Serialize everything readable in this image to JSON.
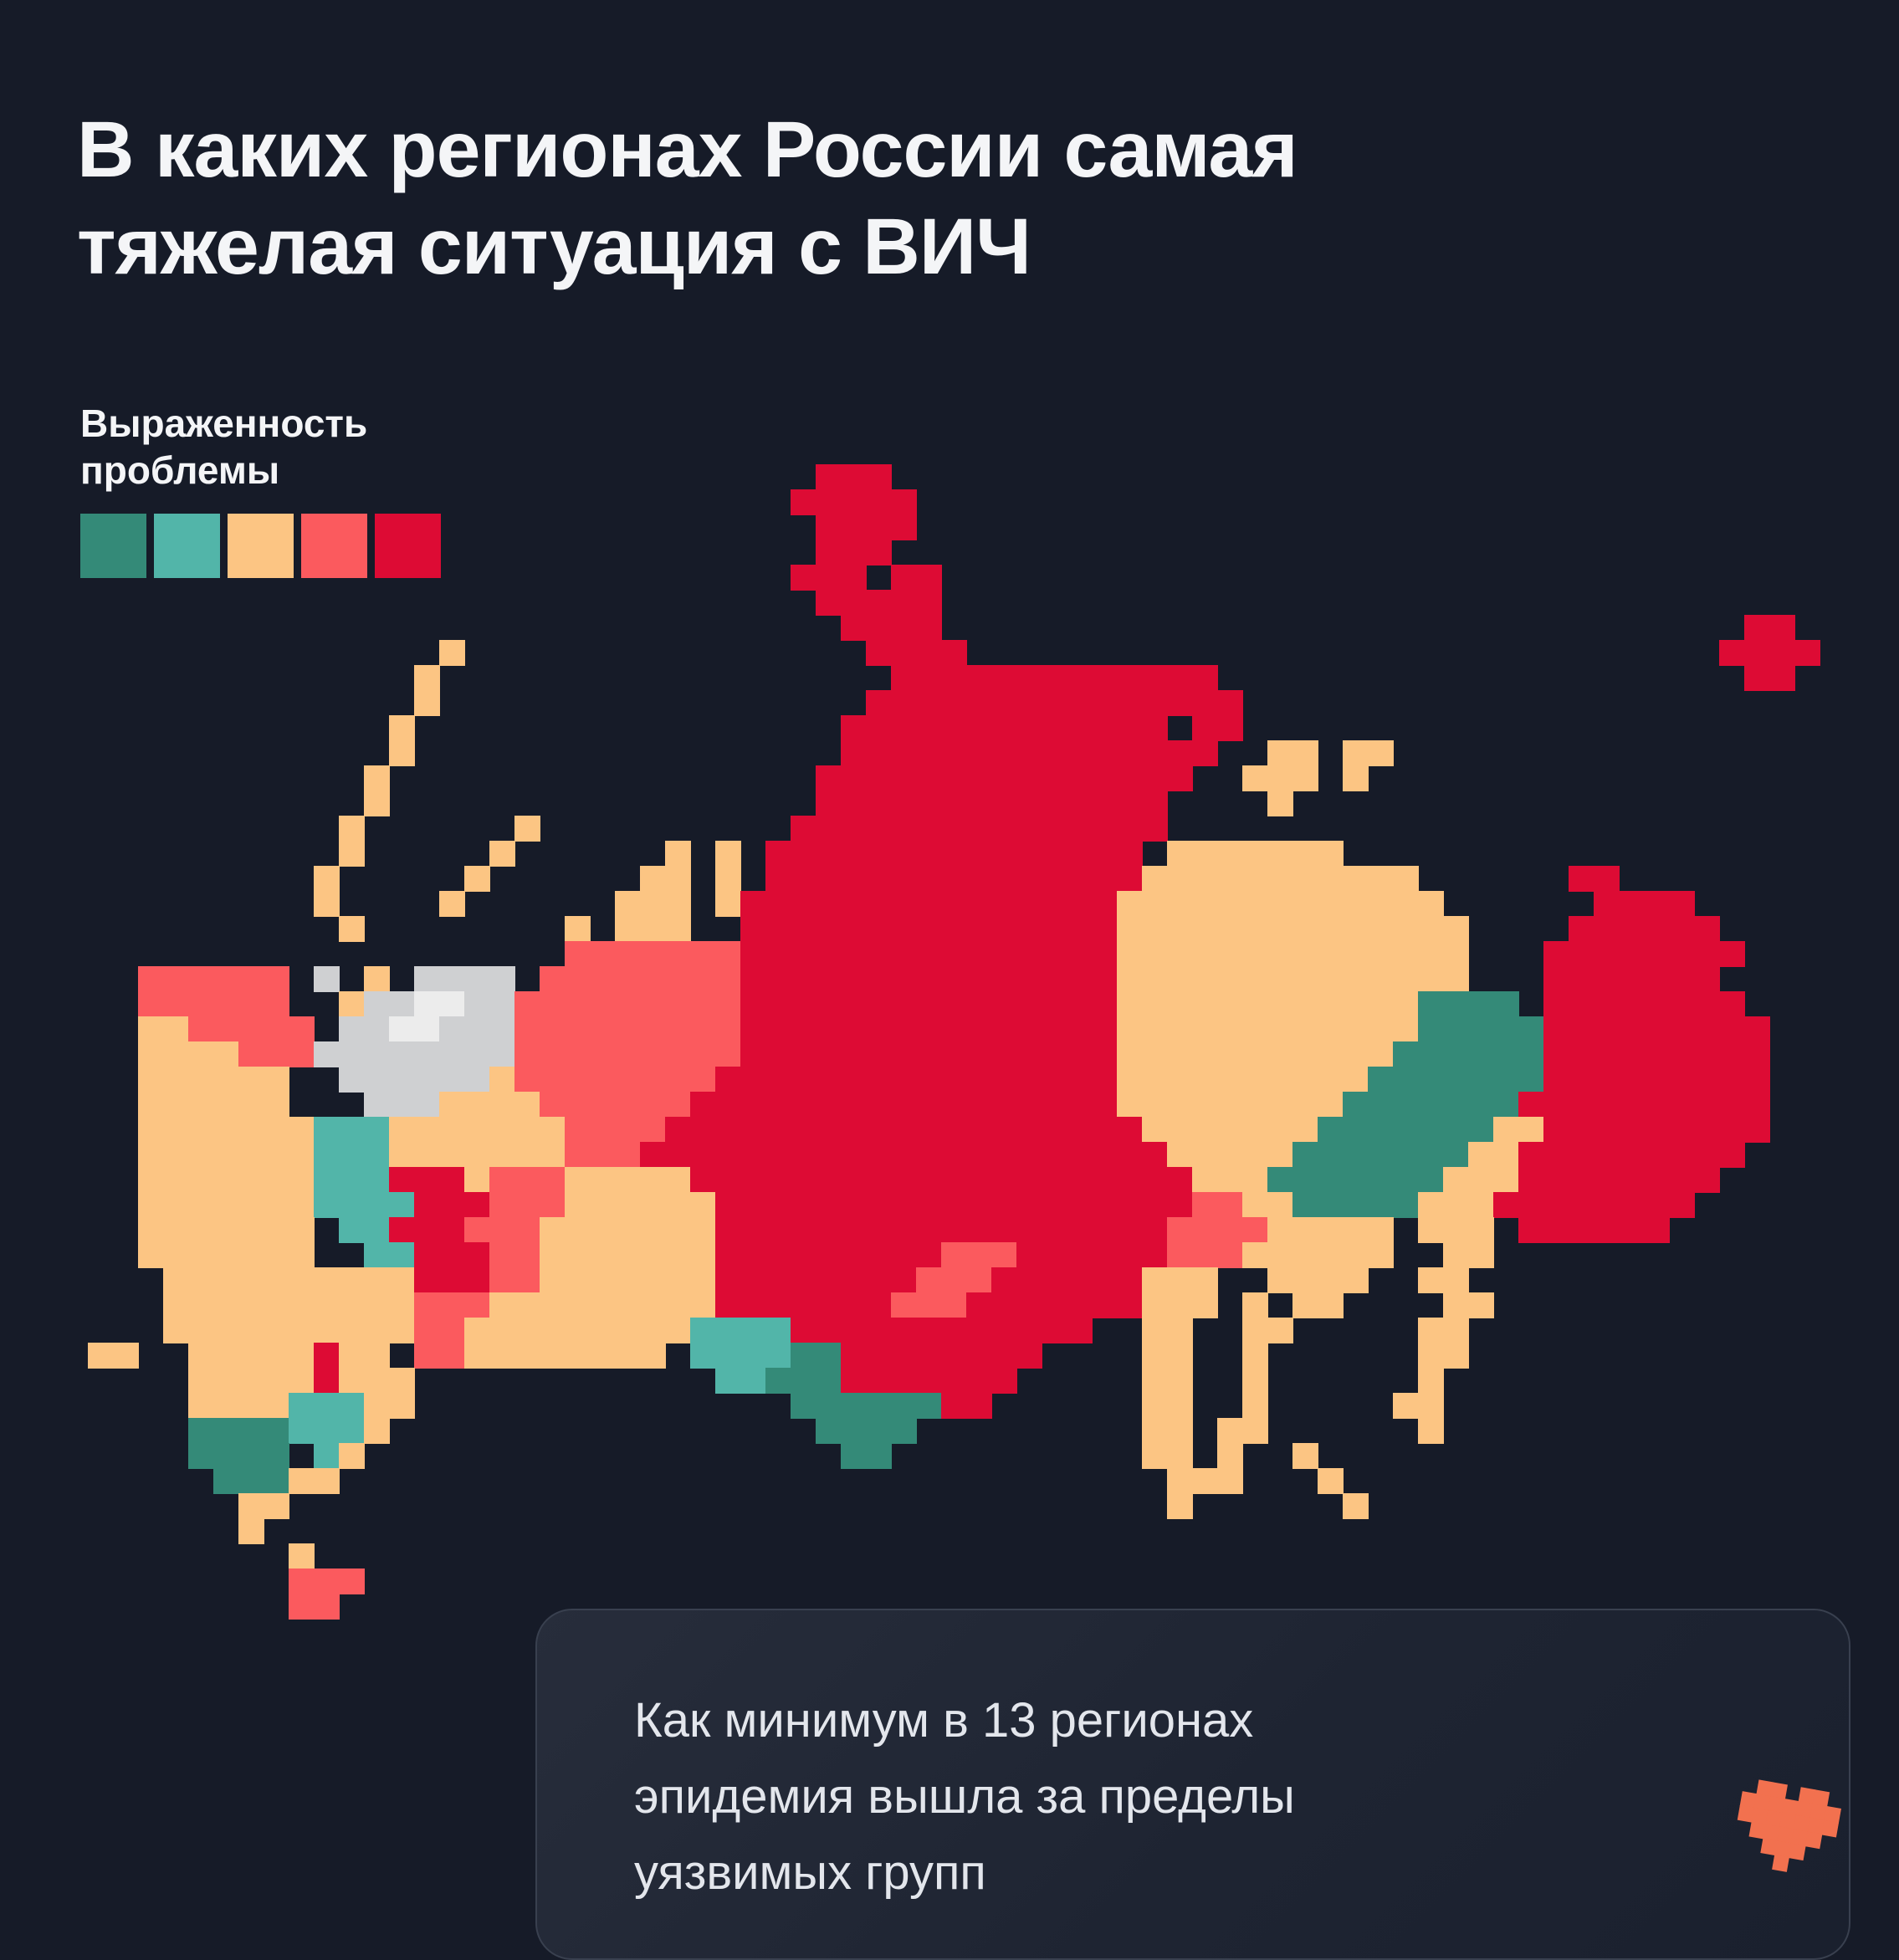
{
  "page": {
    "bg": "#161b28"
  },
  "title": {
    "line1": "В каких регионах России самая",
    "line2": "тяжелая ситуация с ВИЧ"
  },
  "legend": {
    "label_line1": "Выраженность",
    "label_line2": "проблемы",
    "swatches": [
      "#348a78",
      "#52b5a9",
      "#fcc583",
      "#fb5a5e",
      "#dd0b34"
    ]
  },
  "card": {
    "line1": "Как минимум в 13 регионах",
    "line2": "эпидемия вышла за пределы",
    "line3": "уязвимых групп"
  },
  "logo": {
    "color": "#f2714f",
    "pattern": [
      ".XX.XX.",
      "XXXXXXX",
      "XXXXXXX",
      ".XXXXX.",
      "..XXX..",
      "...X..."
    ]
  },
  "map": {
    "cell_size": 30,
    "palette": {
      "g": "#348a78",
      "t": "#52b5a9",
      "o": "#fcc583",
      "p": "#fb5a5e",
      "r": "#dd0b34",
      "w": "#cfd0d2",
      "W": "#ececec"
    },
    "rows": [
      [
        [
          29,
          3,
          "r"
        ]
      ],
      [
        [
          28,
          5,
          "r"
        ]
      ],
      [
        [
          29,
          4,
          "r"
        ]
      ],
      [
        [
          29,
          3,
          "r"
        ]
      ],
      [
        [
          28,
          3,
          "r"
        ],
        [
          32,
          2,
          "r"
        ]
      ],
      [
        [
          29,
          5,
          "r"
        ]
      ],
      [
        [
          30,
          4,
          "r"
        ],
        [
          66,
          2,
          "r"
        ]
      ],
      [
        [
          14,
          1,
          "o"
        ],
        [
          31,
          4,
          "r"
        ],
        [
          65,
          4,
          "r"
        ]
      ],
      [
        [
          13,
          1,
          "o"
        ],
        [
          32,
          13,
          "r"
        ],
        [
          66,
          2,
          "r"
        ]
      ],
      [
        [
          13,
          1,
          "o"
        ],
        [
          31,
          15,
          "r"
        ]
      ],
      [
        [
          12,
          1,
          "o"
        ],
        [
          30,
          13,
          "r"
        ],
        [
          44,
          2,
          "r"
        ]
      ],
      [
        [
          12,
          1,
          "o"
        ],
        [
          30,
          15,
          "r"
        ],
        [
          47,
          2,
          "o"
        ],
        [
          50,
          2,
          "o"
        ]
      ],
      [
        [
          11,
          1,
          "o"
        ],
        [
          29,
          15,
          "r"
        ],
        [
          46,
          3,
          "o"
        ],
        [
          50,
          1,
          "o"
        ]
      ],
      [
        [
          11,
          1,
          "o"
        ],
        [
          29,
          14,
          "r"
        ],
        [
          47,
          1,
          "o"
        ]
      ],
      [
        [
          10,
          1,
          "o"
        ],
        [
          17,
          1,
          "o"
        ],
        [
          28,
          15,
          "r"
        ]
      ],
      [
        [
          10,
          1,
          "o"
        ],
        [
          16,
          1,
          "o"
        ],
        [
          23,
          1,
          "o"
        ],
        [
          25,
          1,
          "o"
        ],
        [
          27,
          15,
          "r"
        ],
        [
          43,
          7,
          "o"
        ]
      ],
      [
        [
          9,
          1,
          "o"
        ],
        [
          15,
          1,
          "o"
        ],
        [
          22,
          2,
          "o"
        ],
        [
          25,
          1,
          "o"
        ],
        [
          27,
          15,
          "r"
        ],
        [
          42,
          11,
          "o"
        ],
        [
          59,
          2,
          "r"
        ]
      ],
      [
        [
          9,
          1,
          "o"
        ],
        [
          14,
          1,
          "o"
        ],
        [
          21,
          3,
          "o"
        ],
        [
          25,
          1,
          "o"
        ],
        [
          26,
          15,
          "r"
        ],
        [
          41,
          13,
          "o"
        ],
        [
          60,
          4,
          "r"
        ]
      ],
      [
        [
          10,
          1,
          "o"
        ],
        [
          19,
          1,
          "o"
        ],
        [
          21,
          3,
          "o"
        ],
        [
          26,
          15,
          "r"
        ],
        [
          41,
          14,
          "o"
        ],
        [
          59,
          6,
          "r"
        ]
      ],
      [
        [
          19,
          7,
          "p"
        ],
        [
          26,
          15,
          "r"
        ],
        [
          41,
          14,
          "o"
        ],
        [
          58,
          8,
          "r"
        ]
      ],
      [
        [
          2,
          6,
          "p"
        ],
        [
          9,
          1,
          "w"
        ],
        [
          11,
          1,
          "o"
        ],
        [
          13,
          4,
          "w"
        ],
        [
          18,
          8,
          "p"
        ],
        [
          26,
          15,
          "r"
        ],
        [
          41,
          14,
          "o"
        ],
        [
          58,
          7,
          "r"
        ]
      ],
      [
        [
          2,
          6,
          "p"
        ],
        [
          10,
          1,
          "o"
        ],
        [
          11,
          2,
          "w"
        ],
        [
          13,
          2,
          "W"
        ],
        [
          15,
          2,
          "w"
        ],
        [
          17,
          9,
          "p"
        ],
        [
          26,
          15,
          "r"
        ],
        [
          41,
          12,
          "o"
        ],
        [
          53,
          4,
          "g"
        ],
        [
          58,
          8,
          "r"
        ]
      ],
      [
        [
          2,
          2,
          "o"
        ],
        [
          4,
          5,
          "p"
        ],
        [
          10,
          2,
          "w"
        ],
        [
          12,
          2,
          "W"
        ],
        [
          14,
          3,
          "w"
        ],
        [
          17,
          9,
          "p"
        ],
        [
          26,
          15,
          "r"
        ],
        [
          41,
          12,
          "o"
        ],
        [
          53,
          5,
          "g"
        ],
        [
          58,
          9,
          "r"
        ]
      ],
      [
        [
          2,
          4,
          "o"
        ],
        [
          6,
          3,
          "p"
        ],
        [
          9,
          8,
          "w"
        ],
        [
          17,
          9,
          "p"
        ],
        [
          26,
          15,
          "r"
        ],
        [
          41,
          11,
          "o"
        ],
        [
          52,
          6,
          "g"
        ],
        [
          58,
          9,
          "r"
        ]
      ],
      [
        [
          2,
          6,
          "o"
        ],
        [
          10,
          6,
          "w"
        ],
        [
          16,
          1,
          "o"
        ],
        [
          17,
          8,
          "p"
        ],
        [
          25,
          16,
          "r"
        ],
        [
          41,
          10,
          "o"
        ],
        [
          51,
          7,
          "g"
        ],
        [
          58,
          9,
          "r"
        ]
      ],
      [
        [
          2,
          6,
          "o"
        ],
        [
          11,
          3,
          "w"
        ],
        [
          14,
          4,
          "o"
        ],
        [
          18,
          6,
          "p"
        ],
        [
          24,
          17,
          "r"
        ],
        [
          41,
          9,
          "o"
        ],
        [
          50,
          7,
          "g"
        ],
        [
          57,
          10,
          "r"
        ]
      ],
      [
        [
          2,
          7,
          "o"
        ],
        [
          9,
          3,
          "t"
        ],
        [
          12,
          7,
          "o"
        ],
        [
          19,
          4,
          "p"
        ],
        [
          23,
          19,
          "r"
        ],
        [
          42,
          7,
          "o"
        ],
        [
          49,
          7,
          "g"
        ],
        [
          56,
          2,
          "o"
        ],
        [
          58,
          9,
          "r"
        ]
      ],
      [
        [
          2,
          7,
          "o"
        ],
        [
          9,
          3,
          "t"
        ],
        [
          12,
          7,
          "o"
        ],
        [
          19,
          3,
          "p"
        ],
        [
          22,
          21,
          "r"
        ],
        [
          43,
          5,
          "o"
        ],
        [
          48,
          7,
          "g"
        ],
        [
          55,
          2,
          "o"
        ],
        [
          57,
          9,
          "r"
        ]
      ],
      [
        [
          2,
          7,
          "o"
        ],
        [
          9,
          3,
          "t"
        ],
        [
          12,
          3,
          "r"
        ],
        [
          15,
          1,
          "o"
        ],
        [
          16,
          3,
          "p"
        ],
        [
          19,
          5,
          "o"
        ],
        [
          24,
          20,
          "r"
        ],
        [
          44,
          3,
          "o"
        ],
        [
          47,
          7,
          "g"
        ],
        [
          54,
          3,
          "o"
        ],
        [
          57,
          8,
          "r"
        ]
      ],
      [
        [
          2,
          7,
          "o"
        ],
        [
          9,
          4,
          "t"
        ],
        [
          13,
          3,
          "r"
        ],
        [
          16,
          3,
          "p"
        ],
        [
          19,
          6,
          "o"
        ],
        [
          25,
          19,
          "r"
        ],
        [
          44,
          2,
          "p"
        ],
        [
          46,
          2,
          "o"
        ],
        [
          48,
          5,
          "g"
        ],
        [
          53,
          3,
          "o"
        ],
        [
          56,
          8,
          "r"
        ]
      ],
      [
        [
          2,
          7,
          "o"
        ],
        [
          10,
          2,
          "t"
        ],
        [
          12,
          3,
          "r"
        ],
        [
          15,
          3,
          "p"
        ],
        [
          18,
          7,
          "o"
        ],
        [
          25,
          18,
          "r"
        ],
        [
          43,
          4,
          "p"
        ],
        [
          47,
          5,
          "o"
        ],
        [
          53,
          3,
          "o"
        ],
        [
          57,
          6,
          "r"
        ]
      ],
      [
        [
          2,
          7,
          "o"
        ],
        [
          11,
          2,
          "t"
        ],
        [
          13,
          3,
          "r"
        ],
        [
          16,
          2,
          "p"
        ],
        [
          18,
          7,
          "o"
        ],
        [
          25,
          9,
          "r"
        ],
        [
          34,
          3,
          "p"
        ],
        [
          37,
          6,
          "r"
        ],
        [
          43,
          3,
          "p"
        ],
        [
          46,
          6,
          "o"
        ],
        [
          54,
          2,
          "o"
        ]
      ],
      [
        [
          3,
          10,
          "o"
        ],
        [
          13,
          3,
          "r"
        ],
        [
          16,
          2,
          "p"
        ],
        [
          18,
          7,
          "o"
        ],
        [
          25,
          8,
          "r"
        ],
        [
          33,
          3,
          "p"
        ],
        [
          36,
          6,
          "r"
        ],
        [
          42,
          3,
          "o"
        ],
        [
          47,
          4,
          "o"
        ],
        [
          53,
          2,
          "o"
        ]
      ],
      [
        [
          3,
          10,
          "o"
        ],
        [
          13,
          3,
          "p"
        ],
        [
          16,
          9,
          "o"
        ],
        [
          25,
          7,
          "r"
        ],
        [
          32,
          3,
          "p"
        ],
        [
          35,
          7,
          "r"
        ],
        [
          42,
          3,
          "o"
        ],
        [
          46,
          1,
          "o"
        ],
        [
          48,
          2,
          "o"
        ],
        [
          54,
          2,
          "o"
        ]
      ],
      [
        [
          3,
          10,
          "o"
        ],
        [
          13,
          2,
          "p"
        ],
        [
          15,
          9,
          "o"
        ],
        [
          24,
          4,
          "t"
        ],
        [
          28,
          12,
          "r"
        ],
        [
          42,
          2,
          "o"
        ],
        [
          46,
          2,
          "o"
        ],
        [
          53,
          2,
          "o"
        ]
      ],
      [
        [
          0,
          2,
          "o"
        ],
        [
          4,
          5,
          "o"
        ],
        [
          9,
          1,
          "r"
        ],
        [
          10,
          2,
          "o"
        ],
        [
          13,
          2,
          "p"
        ],
        [
          15,
          8,
          "o"
        ],
        [
          24,
          4,
          "t"
        ],
        [
          28,
          2,
          "g"
        ],
        [
          30,
          8,
          "r"
        ],
        [
          42,
          2,
          "o"
        ],
        [
          46,
          1,
          "o"
        ],
        [
          53,
          2,
          "o"
        ]
      ],
      [
        [
          4,
          5,
          "o"
        ],
        [
          9,
          1,
          "r"
        ],
        [
          10,
          3,
          "o"
        ],
        [
          25,
          2,
          "t"
        ],
        [
          27,
          3,
          "g"
        ],
        [
          30,
          7,
          "r"
        ],
        [
          42,
          2,
          "o"
        ],
        [
          46,
          1,
          "o"
        ],
        [
          53,
          1,
          "o"
        ]
      ],
      [
        [
          4,
          4,
          "o"
        ],
        [
          8,
          3,
          "t"
        ],
        [
          11,
          2,
          "o"
        ],
        [
          28,
          6,
          "g"
        ],
        [
          34,
          2,
          "r"
        ],
        [
          42,
          2,
          "o"
        ],
        [
          46,
          1,
          "o"
        ],
        [
          52,
          2,
          "o"
        ]
      ],
      [
        [
          4,
          4,
          "g"
        ],
        [
          8,
          3,
          "t"
        ],
        [
          11,
          1,
          "o"
        ],
        [
          29,
          4,
          "g"
        ],
        [
          42,
          2,
          "o"
        ],
        [
          45,
          2,
          "o"
        ],
        [
          53,
          1,
          "o"
        ]
      ],
      [
        [
          4,
          4,
          "g"
        ],
        [
          9,
          1,
          "t"
        ],
        [
          10,
          1,
          "o"
        ],
        [
          30,
          2,
          "g"
        ],
        [
          42,
          2,
          "o"
        ],
        [
          45,
          1,
          "o"
        ],
        [
          48,
          1,
          "o"
        ]
      ],
      [
        [
          5,
          3,
          "g"
        ],
        [
          8,
          2,
          "o"
        ],
        [
          43,
          3,
          "o"
        ],
        [
          49,
          1,
          "o"
        ]
      ],
      [
        [
          6,
          2,
          "o"
        ],
        [
          43,
          1,
          "o"
        ],
        [
          50,
          1,
          "o"
        ]
      ],
      [
        [
          6,
          1,
          "o"
        ]
      ],
      [
        [
          8,
          1,
          "o"
        ]
      ],
      [
        [
          8,
          3,
          "p"
        ]
      ],
      [
        [
          8,
          2,
          "p"
        ]
      ]
    ]
  }
}
